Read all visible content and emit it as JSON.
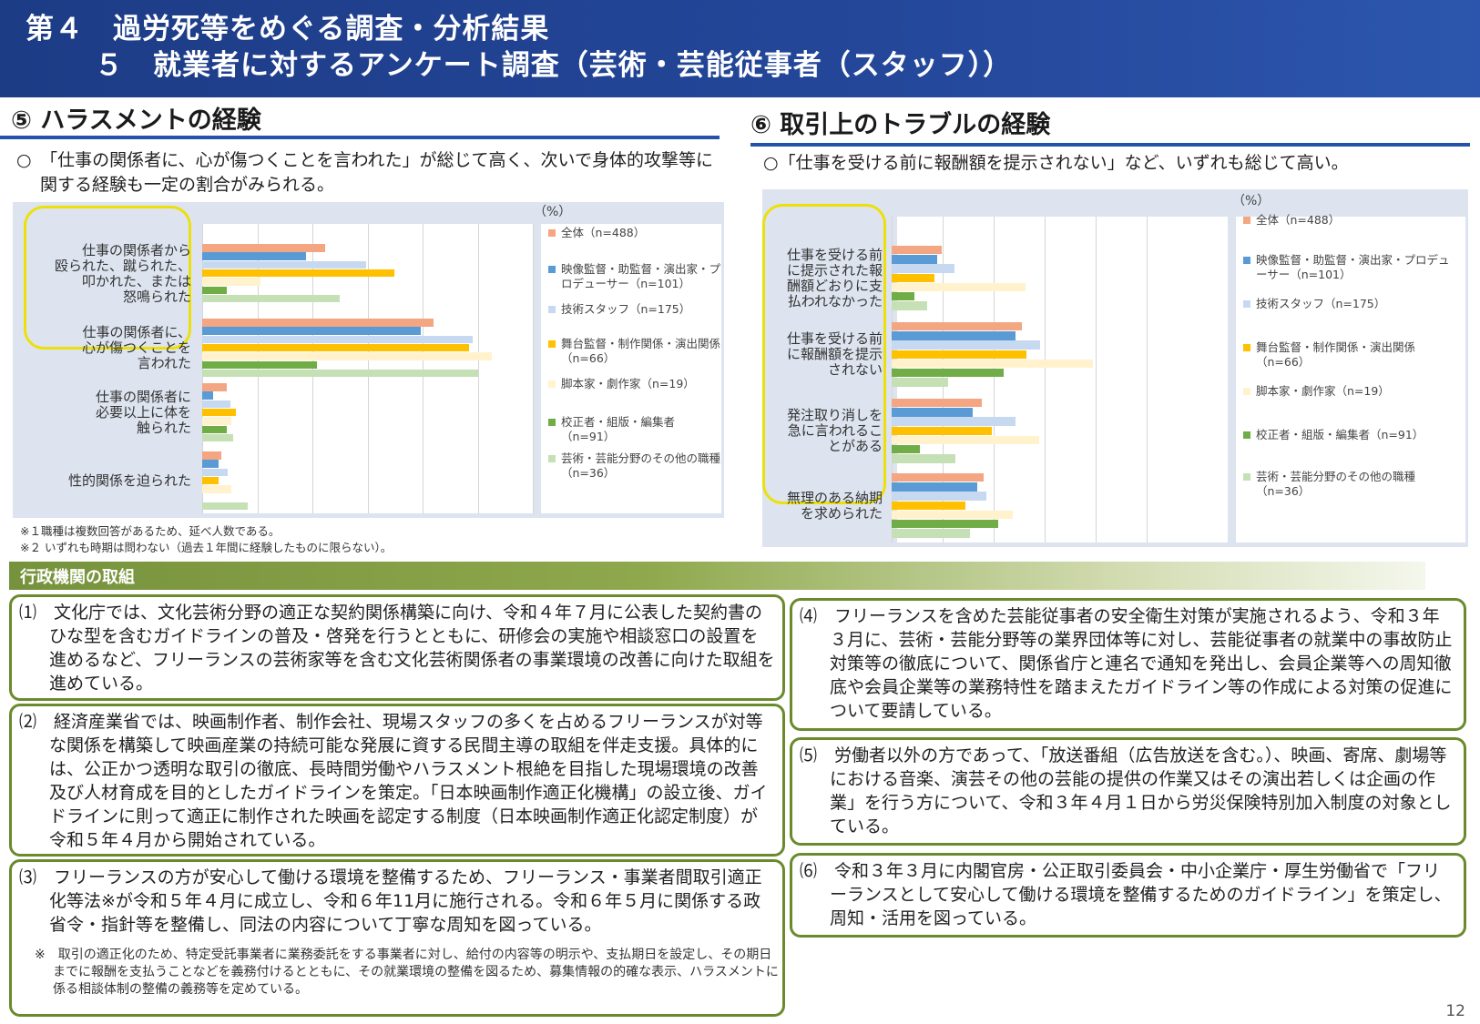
{
  "header": {
    "line1": "第４　過労死等をめぐる調査・分析結果",
    "line2": "５　就業者に対するアンケート調査（芸術・芸能従事者（スタッフ））"
  },
  "colors": {
    "series": [
      "#f4a582",
      "#5b9bd5",
      "#c6d9f0",
      "#ffc000",
      "#fff2cc",
      "#70ad47",
      "#c5e0b4"
    ],
    "highlight": "#ece00a",
    "header": "#1d3c86",
    "green": "#76923c"
  },
  "left": {
    "title": "⑤ ハラスメントの経験",
    "lead": "○　「仕事の関係者に、心が傷つくことを言われた」が総じて高く、次いで身体的攻撃等に関する経験も一定の割合がみられる。",
    "unit": "（%）",
    "notes": [
      "※１職種は複数回答があるため、延べ人数である。",
      "※２ いずれも時期は問わない（過去１年間に経験したものに限らない）。"
    ]
  },
  "right": {
    "title": "⑥ 取引上のトラブルの経験",
    "lead": "○「仕事を受ける前に報酬額を提示されない」など、いずれも総じて高い。",
    "unit": "（%）"
  },
  "chart_data": [
    {
      "type": "bar",
      "orientation": "horizontal",
      "title": "⑤ ハラスメントの経験",
      "categories": [
        "仕事の関係者から殴られた、蹴られた、叩かれた、または怒鳴られた",
        "仕事の関係者に、心が傷つくことを言われた",
        "仕事の関係者に必要以上に体を触られた",
        "性的関係を迫られた"
      ],
      "category_lines": [
        [
          "仕事の関係者から",
          "殴られた、蹴られた、",
          "叩かれた、または",
          "怒鳴られた"
        ],
        [
          "仕事の関係者に、",
          "心が傷つくことを",
          "言われた"
        ],
        [
          "仕事の関係者に",
          "必要以上に体を",
          "触られた"
        ],
        [
          "性的関係を迫られた"
        ]
      ],
      "highlighted": [
        0,
        1
      ],
      "series": [
        {
          "name": "全体（n=488）",
          "values": [
            22.3,
            42.0,
            4.5,
            3.5
          ]
        },
        {
          "name": "映像監督・助監督・演出家・プロデューサー（n=101）",
          "values": [
            18.8,
            39.6,
            2.0,
            3.0
          ]
        },
        {
          "name": "技術スタッフ（n=175）",
          "values": [
            29.7,
            49.1,
            5.1,
            4.6
          ]
        },
        {
          "name": "舞台監督・制作関係・演出関係（n=66）",
          "values": [
            34.8,
            48.5,
            6.1,
            3.0
          ]
        },
        {
          "name": "脚本家・劇作家（n=19）",
          "values": [
            10.5,
            52.6,
            5.3,
            5.3
          ]
        },
        {
          "name": "校正者・組版・編集者（n=91）",
          "values": [
            4.4,
            20.9,
            4.4,
            0.0
          ]
        },
        {
          "name": "芸術・芸能分野のその他の職種（n=36）",
          "values": [
            25.0,
            50.0,
            5.6,
            8.3
          ]
        }
      ],
      "labels": [
        [
          "22.3",
          "18.8",
          "29.7",
          "34.8",
          "10.5",
          "4.4",
          "25.0"
        ],
        [
          "42.0",
          "39.6",
          "49.1",
          "48.5",
          "52.6",
          "20.9",
          "50.0"
        ],
        [
          "4.5",
          "2.0",
          "5.1",
          "6.1",
          "5.3",
          "4.4",
          "5.6"
        ],
        [
          "3.5",
          "3.0",
          "4.6",
          "3.0",
          "5.3",
          "0.0",
          "8.3"
        ]
      ],
      "legend": [
        "全体（n=488）",
        "映像監督・助監督・演出家・プロデューサー（n=101）",
        "技術スタッフ（n=175）",
        "舞台監督・制作関係・演出関係（n=66）",
        "脚本家・劇作家（n=19）",
        "校正者・組版・編集者（n=91）",
        "芸術・芸能分野のその他の職種（n=36）"
      ],
      "xlim": [
        0,
        60
      ],
      "xticks": [
        "0",
        "10",
        "20",
        "30",
        "40",
        "50",
        "60"
      ],
      "xunit": "（%）",
      "grid": true,
      "legend_position": "right"
    },
    {
      "type": "bar",
      "orientation": "horizontal",
      "title": "⑥ 取引上のトラブルの経験",
      "categories": [
        "仕事を受ける前に提示された報酬額どおりに支払われなかった",
        "仕事を受ける前に報酬額を提示されない",
        "発注取り消しを急に言われることがある",
        "無理のある納期を求められた"
      ],
      "category_lines": [
        [
          "仕事を受ける前",
          "に提示された報",
          "酬額どおりに支",
          "払われなかった"
        ],
        [
          "仕事を受ける前",
          "に報酬額を提示",
          "されない"
        ],
        [
          "発注取り消しを",
          "急に言われるこ",
          "とがある"
        ],
        [
          "無理のある納期",
          "を求められた"
        ]
      ],
      "highlighted": [
        0,
        1,
        2,
        3
      ],
      "series": [
        {
          "name": "全体（n=488）",
          "values": [
            19.5,
            51.0,
            35.5,
            36.1
          ]
        },
        {
          "name": "映像監督・助監督・演出家・プロデューサー（n=101）",
          "values": [
            17.8,
            48.5,
            31.7,
            33.7
          ]
        },
        {
          "name": "技術スタッフ（n=175）",
          "values": [
            24.6,
            58.3,
            48.6,
            37.1
          ]
        },
        {
          "name": "舞台監督・制作関係・演出関係（n=66）",
          "values": [
            16.7,
            53.0,
            39.4,
            28.8
          ]
        },
        {
          "name": "脚本家・劇作家（n=19）",
          "values": [
            52.6,
            78.9,
            57.9,
            47.4
          ]
        },
        {
          "name": "校正者・組版・編集者（n=91）",
          "values": [
            8.8,
            44.0,
            11.0,
            41.8
          ]
        },
        {
          "name": "芸術・芸能分野のその他の職種（n=36）",
          "values": [
            13.9,
            22.2,
            25.0,
            30.6
          ]
        }
      ],
      "labels": [
        [
          "19.5",
          "17.8",
          "24.6",
          "16.7",
          "52.6",
          "8.8",
          "13.9"
        ],
        [
          "51.0",
          "48.5",
          "58.3",
          "53.0",
          "78.9",
          "44.0",
          "22.2"
        ],
        [
          "35.5",
          "31.7",
          "48.6",
          "39.4",
          "57.9",
          "11.0",
          "25.0"
        ],
        [
          "36.1",
          "33.7",
          "37.1",
          "28.8",
          "47.4",
          "41.8",
          "30.6"
        ]
      ],
      "legend": [
        "全体（n=488）",
        "映像監督・助監督・演出家・プロデューサー（n=101）",
        "技術スタッフ（n=175）",
        "舞台監督・制作関係・演出関係（n=66）",
        "脚本家・劇作家（n=19）",
        "校正者・組版・編集者（n=91）",
        "芸術・芸能分野のその他の職種（n=36）"
      ],
      "xlim": [
        0,
        100
      ],
      "xticks": [
        "0",
        "20",
        "40",
        "60",
        "80",
        "100"
      ],
      "xunit": "（%）",
      "grid": true,
      "legend_position": "right"
    }
  ],
  "admin": {
    "title": "行政機関の取組",
    "items": [
      "⑴　文化庁では、文化芸術分野の適正な契約関係構築に向け、令和４年７月に公表した契約書のひな型を含むガイドラインの普及・啓発を行うとともに、研修会の実施や相談窓口の設置を進めるなど、フリーランスの芸術家等を含む文化芸術関係者の事業環境の改善に向けた取組を進めている。",
      "⑵　経済産業省では、映画制作者、制作会社、現場スタッフの多くを占めるフリーランスが対等な関係を構築して映画産業の持続可能な発展に資する民間主導の取組を伴走支援。具体的には、公正かつ透明な取引の徹底、長時間労働やハラスメント根絶を目指した現場環境の改善及び人材育成を目的としたガイドラインを策定。「日本映画制作適正化機構」の設立後、ガイドラインに則って適正に制作された映画を認定する制度（日本映画制作適正化認定制度）が令和５年４月から開始されている。",
      "⑶　フリーランスの方が安心して働ける環境を整備するため、フリーランス・事業者間取引適正化等法※が令和５年４月に成立し、令和６年11月に施行される。令和６年５月に関係する政省令・指針等を整備し、同法の内容について丁寧な周知を図っている。",
      "⑷　フリーランスを含めた芸能従事者の安全衛生対策が実施されるよう、令和３年３月に、芸術・芸能分野等の業界団体等に対し、芸能従事者の就業中の事故防止対策等の徹底について、関係省庁と連名で通知を発出し、会員企業等への周知徹底や会員企業等の業務特性を踏まえたガイドライン等の作成による対策の促進について要請している。",
      "⑸　労働者以外の方であって、「放送番組（広告放送を含む。）、映画、寄席、劇場等における音楽、演芸その他の芸能の提供の作業又はその演出若しくは企画の作業」を行う方について、令和３年４月１日から労災保険特別加入制度の対象としている。",
      "⑹　令和３年３月に内閣官房・公正取引委員会・中小企業庁・厚生労働省で「フリーランスとして安心して働ける環境を整備するためのガイドライン」を策定し、周知・活用を図っている。"
    ],
    "footnote": "※　取引の適正化のため、特定受託事業者に業務委託をする事業者に対し、給付の内容等の明示や、支払期日を設定し、その期日までに報酬を支払うことなどを義務付けるとともに、その就業環境の整備を図るため、募集情報の的確な表示、ハラスメントに係る相談体制の整備の義務等を定めている。"
  },
  "page_number": "12"
}
